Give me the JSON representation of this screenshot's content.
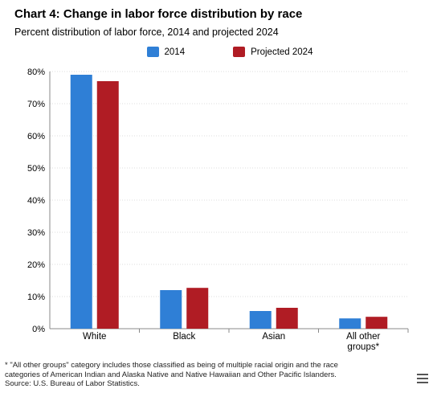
{
  "title": "Chart 4: Change in labor force distribution by race",
  "subtitle": "Percent distribution of labor force, 2014 and projected 2024",
  "colors": {
    "series_2014": "#2f7fd6",
    "series_2024": "#b01c24",
    "grid": "#dddddd",
    "axis": "#888888"
  },
  "chart_data": {
    "type": "bar",
    "categories": [
      "White",
      "Black",
      "Asian",
      "All other groups*"
    ],
    "category_lines": [
      [
        "White"
      ],
      [
        "Black"
      ],
      [
        "Asian"
      ],
      [
        "All other",
        "groups*"
      ]
    ],
    "series": [
      {
        "name": "2014",
        "values": [
          79,
          12,
          5.5,
          3.2
        ]
      },
      {
        "name": "Projected 2024",
        "values": [
          77,
          12.7,
          6.5,
          3.7
        ]
      }
    ],
    "ylim": [
      0,
      80
    ],
    "yticks": [
      0,
      10,
      20,
      30,
      40,
      50,
      60,
      70,
      80
    ],
    "ytick_labels": [
      "0%",
      "10%",
      "20%",
      "30%",
      "40%",
      "50%",
      "60%",
      "70%",
      "80%"
    ],
    "grid": true,
    "legend_position": "top-center",
    "xlabel": "",
    "ylabel": ""
  },
  "footnote": {
    "line1": "* \"All other groups\" category includes those classified as being of multiple racial origin and the race",
    "line2": "categories of American Indian and Alaska Native and Native Hawaiian and Other Pacific Islanders.",
    "line3": "Source: U.S. Bureau of Labor Statistics."
  },
  "menu_icon": "hamburger-menu-icon"
}
